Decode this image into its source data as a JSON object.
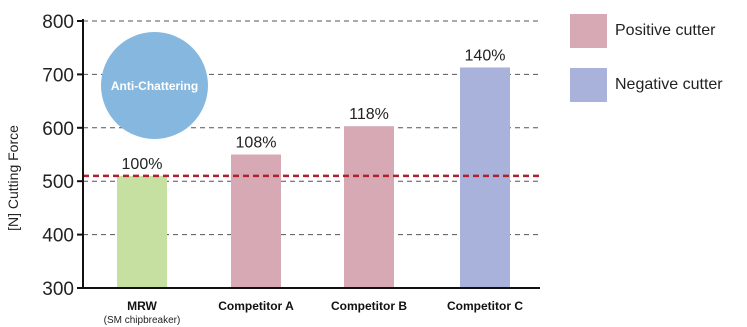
{
  "chart_data": {
    "type": "bar",
    "ylabel": "[N] Cutting Force",
    "ylim": [
      300,
      800
    ],
    "yticks": [
      300,
      400,
      500,
      600,
      700,
      800
    ],
    "categories": [
      {
        "label": "MRW",
        "sublabel": "(SM chipbreaker)"
      },
      {
        "label": "Competitor A",
        "sublabel": ""
      },
      {
        "label": "Competitor B",
        "sublabel": ""
      },
      {
        "label": "Competitor C",
        "sublabel": ""
      }
    ],
    "values": [
      510,
      550,
      603,
      713
    ],
    "data_labels": [
      "100%",
      "108%",
      "118%",
      "140%"
    ],
    "bar_colors": [
      "#c5e0a0",
      "#d6a9b4",
      "#d6a9b4",
      "#a8b2da"
    ],
    "reference_line": {
      "value": 510,
      "color": "#b02030"
    },
    "grid": true,
    "legend_position": "right",
    "legend": [
      {
        "label": "Positive cutter",
        "color": "#d6a9b4"
      },
      {
        "label": "Negative cutter",
        "color": "#a8b2da"
      }
    ],
    "badge": {
      "text": "Anti-Chattering",
      "color": "#86b8df"
    }
  }
}
